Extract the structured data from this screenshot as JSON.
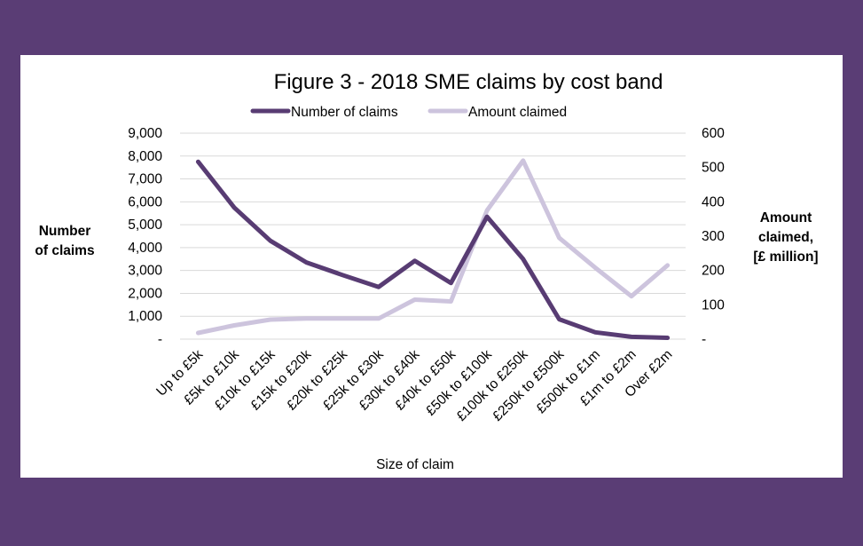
{
  "colors": {
    "background": "#5a3d75",
    "panel": "#ffffff",
    "series_dark": "#583c73",
    "series_light": "#cdc4dd",
    "gridline": "#d9d9d9"
  },
  "chart_data": {
    "type": "line",
    "title": "Figure 3 - 2018 SME claims by cost band",
    "xlabel": "Size of claim",
    "ylabel": "Number of claims",
    "y2label": "Amount claimed, [£ million]",
    "categories": [
      "Up to £5k",
      "£5k to £10k",
      "£10k to £15k",
      "£15k to £20k",
      "£20k to £25k",
      "£25k to £30k",
      "£30k to £40k",
      "£40k to £50k",
      "£50k to £100k",
      "£100k to £250k",
      "£250k to £500k",
      "£500k to £1m",
      "£1m to £2m",
      "Over £2m"
    ],
    "series": [
      {
        "name": "Number of claims",
        "axis": "left",
        "color": "#583c73",
        "values": [
          7750,
          5750,
          4300,
          3350,
          2800,
          2280,
          3420,
          2450,
          5350,
          3500,
          870,
          300,
          100,
          60
        ]
      },
      {
        "name": "Amount claimed",
        "axis": "right",
        "color": "#cdc4dd",
        "values": [
          18,
          40,
          57,
          60,
          60,
          60,
          115,
          110,
          375,
          520,
          295,
          208,
          125,
          215
        ]
      }
    ],
    "ylim": [
      0,
      9000
    ],
    "y2lim": [
      0,
      600
    ],
    "yticks": [
      "-",
      "1,000",
      "2,000",
      "3,000",
      "4,000",
      "5,000",
      "6,000",
      "7,000",
      "8,000",
      "9,000"
    ],
    "y2ticks": [
      "-",
      "100",
      "200",
      "300",
      "400",
      "500",
      "600"
    ],
    "grid": true,
    "legend_position": "top"
  }
}
